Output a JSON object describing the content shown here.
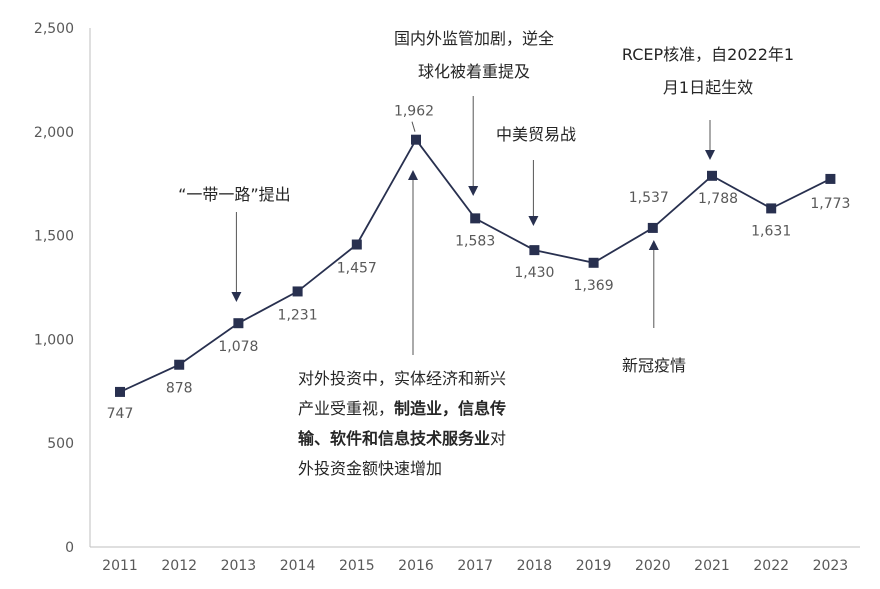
{
  "chart_data": {
    "type": "line",
    "title": "",
    "xlabel": "",
    "ylabel": "",
    "ylim": [
      0,
      2500
    ],
    "yticks": [
      0,
      500,
      1000,
      1500,
      2000,
      2500
    ],
    "ytick_labels": [
      "0",
      "500",
      "1,000",
      "1,500",
      "2,000",
      "2,500"
    ],
    "grid": false,
    "categories": [
      "2011",
      "2012",
      "2013",
      "2014",
      "2015",
      "2016",
      "2017",
      "2018",
      "2019",
      "2020",
      "2021",
      "2022",
      "2023"
    ],
    "series": [
      {
        "name": "",
        "color": "#28304f",
        "values": [
          747,
          878,
          1078,
          1231,
          1457,
          1962,
          1583,
          1430,
          1369,
          1537,
          1788,
          1631,
          1773
        ],
        "labels": [
          "747",
          "878",
          "1,078",
          "1,231",
          "1,457",
          "1,962",
          "1,583",
          "1,430",
          "1,369",
          "1,537",
          "1,788",
          "1,631",
          "1,773"
        ]
      }
    ],
    "annotations": [
      {
        "id": "belt-road",
        "category": "2013",
        "lines": [
          [
            {
              "text": "“一带一路”提出",
              "bold": false
            }
          ]
        ]
      },
      {
        "id": "regulation",
        "category": "2017",
        "lines": [
          [
            {
              "text": "国内外监管加剧，逆全",
              "bold": false
            }
          ],
          [
            {
              "text": "球化被着重提及",
              "bold": false
            }
          ]
        ]
      },
      {
        "id": "trade-war",
        "category": "2018",
        "lines": [
          [
            {
              "text": "中美贸易战",
              "bold": false
            }
          ]
        ]
      },
      {
        "id": "rcep",
        "category": "2021",
        "lines": [
          [
            {
              "text": "RCEP核准，自2022年1",
              "bold": false
            }
          ],
          [
            {
              "text": "月1日起生效",
              "bold": false
            }
          ]
        ]
      },
      {
        "id": "covid",
        "category": "2020",
        "lines": [
          [
            {
              "text": "新冠疫情",
              "bold": false
            }
          ]
        ]
      },
      {
        "id": "real-economy",
        "category": "2016",
        "lines": [
          [
            {
              "text": "对外投资中，实体经济和新兴",
              "bold": false
            }
          ],
          [
            {
              "text": "产业受重视，",
              "bold": false
            },
            {
              "text": "制造业，信息传",
              "bold": true
            }
          ],
          [
            {
              "text": "输、软件和信息技术服务业",
              "bold": true
            },
            {
              "text": "对",
              "bold": false
            }
          ],
          [
            {
              "text": "外投资金额快速增加",
              "bold": false
            }
          ]
        ]
      }
    ]
  }
}
